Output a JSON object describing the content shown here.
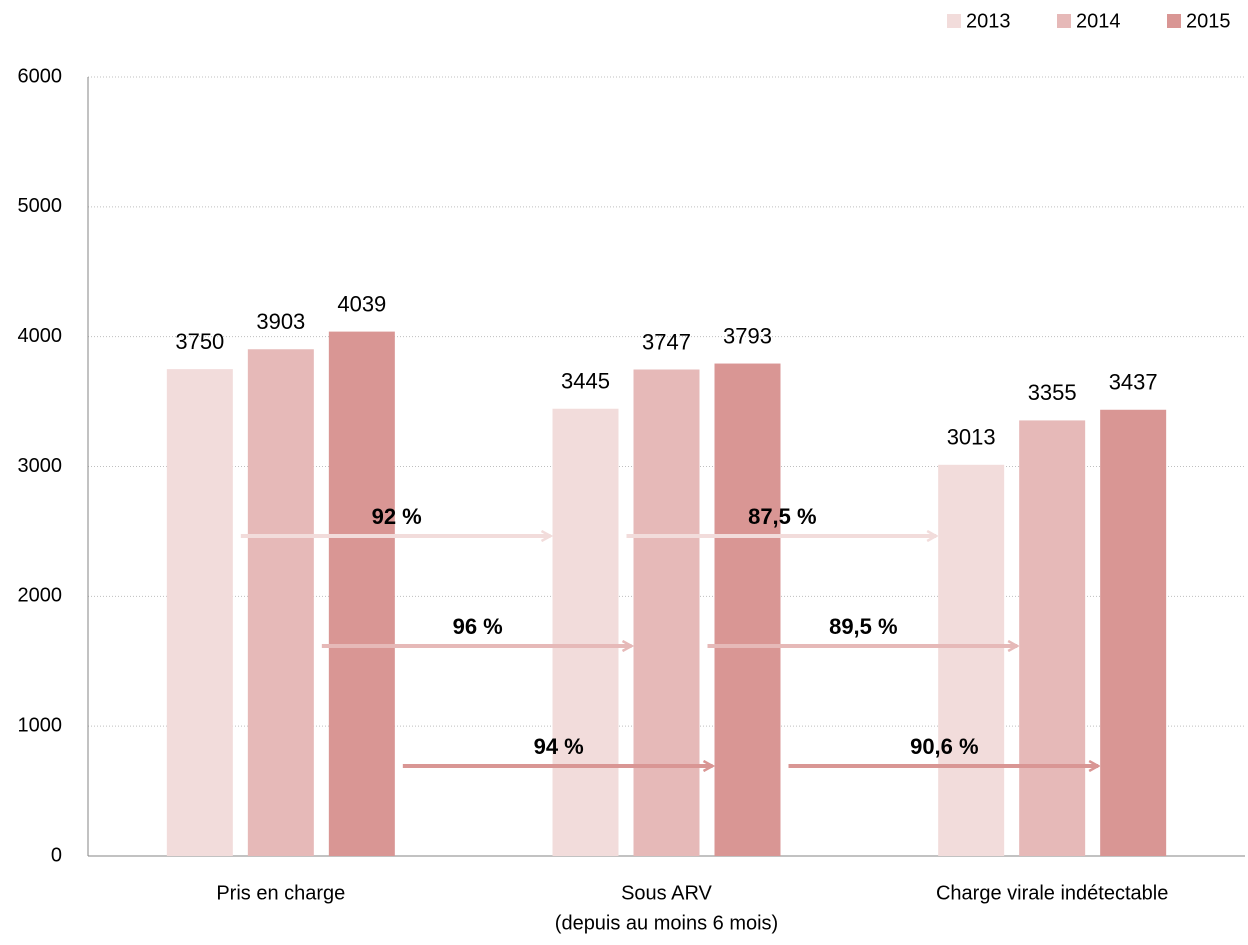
{
  "chart_data": {
    "type": "bar",
    "categories": [
      [
        "Pris en charge"
      ],
      [
        "Sous ARV",
        "(depuis au moins 6 mois)"
      ],
      [
        "Charge virale indétectable"
      ]
    ],
    "series": [
      {
        "name": "2013",
        "color": "#f2dcdb",
        "values": [
          3750,
          3445,
          3013
        ]
      },
      {
        "name": "2014",
        "color": "#e6b9b8",
        "values": [
          3903,
          3747,
          3355
        ]
      },
      {
        "name": "2015",
        "color": "#d99694",
        "values": [
          4039,
          3793,
          3437
        ]
      }
    ],
    "ylim": [
      0,
      6000
    ],
    "yticks": [
      0,
      1000,
      2000,
      3000,
      4000,
      5000,
      6000
    ],
    "grid": true,
    "legend": "top-right",
    "annotations": [
      {
        "text": "92 %"
      },
      {
        "text": "96 %"
      },
      {
        "text": "94 %"
      },
      {
        "text": "87,5 %"
      },
      {
        "text": "89,5 %"
      },
      {
        "text": "90,6 %"
      }
    ]
  }
}
